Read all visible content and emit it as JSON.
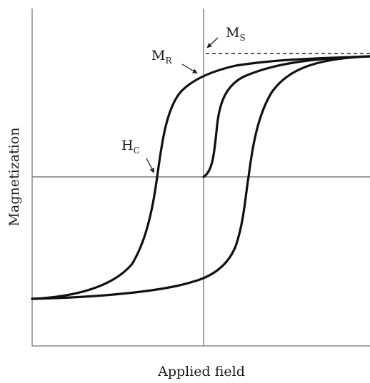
{
  "diagram": {
    "type": "magnetic hysteresis loop",
    "x_axis_label": "Applied field",
    "y_axis_label": "Magnetization",
    "annotations": {
      "saturation": {
        "main": "M",
        "sub": "S"
      },
      "remanence": {
        "main": "M",
        "sub": "R"
      },
      "coercivity": {
        "main": "H",
        "sub": "C"
      }
    },
    "curves": [
      "initial-magnetization-curve",
      "descending-branch",
      "ascending-branch"
    ],
    "line_color": "#111111",
    "axis_color": "#7a7a7a"
  }
}
